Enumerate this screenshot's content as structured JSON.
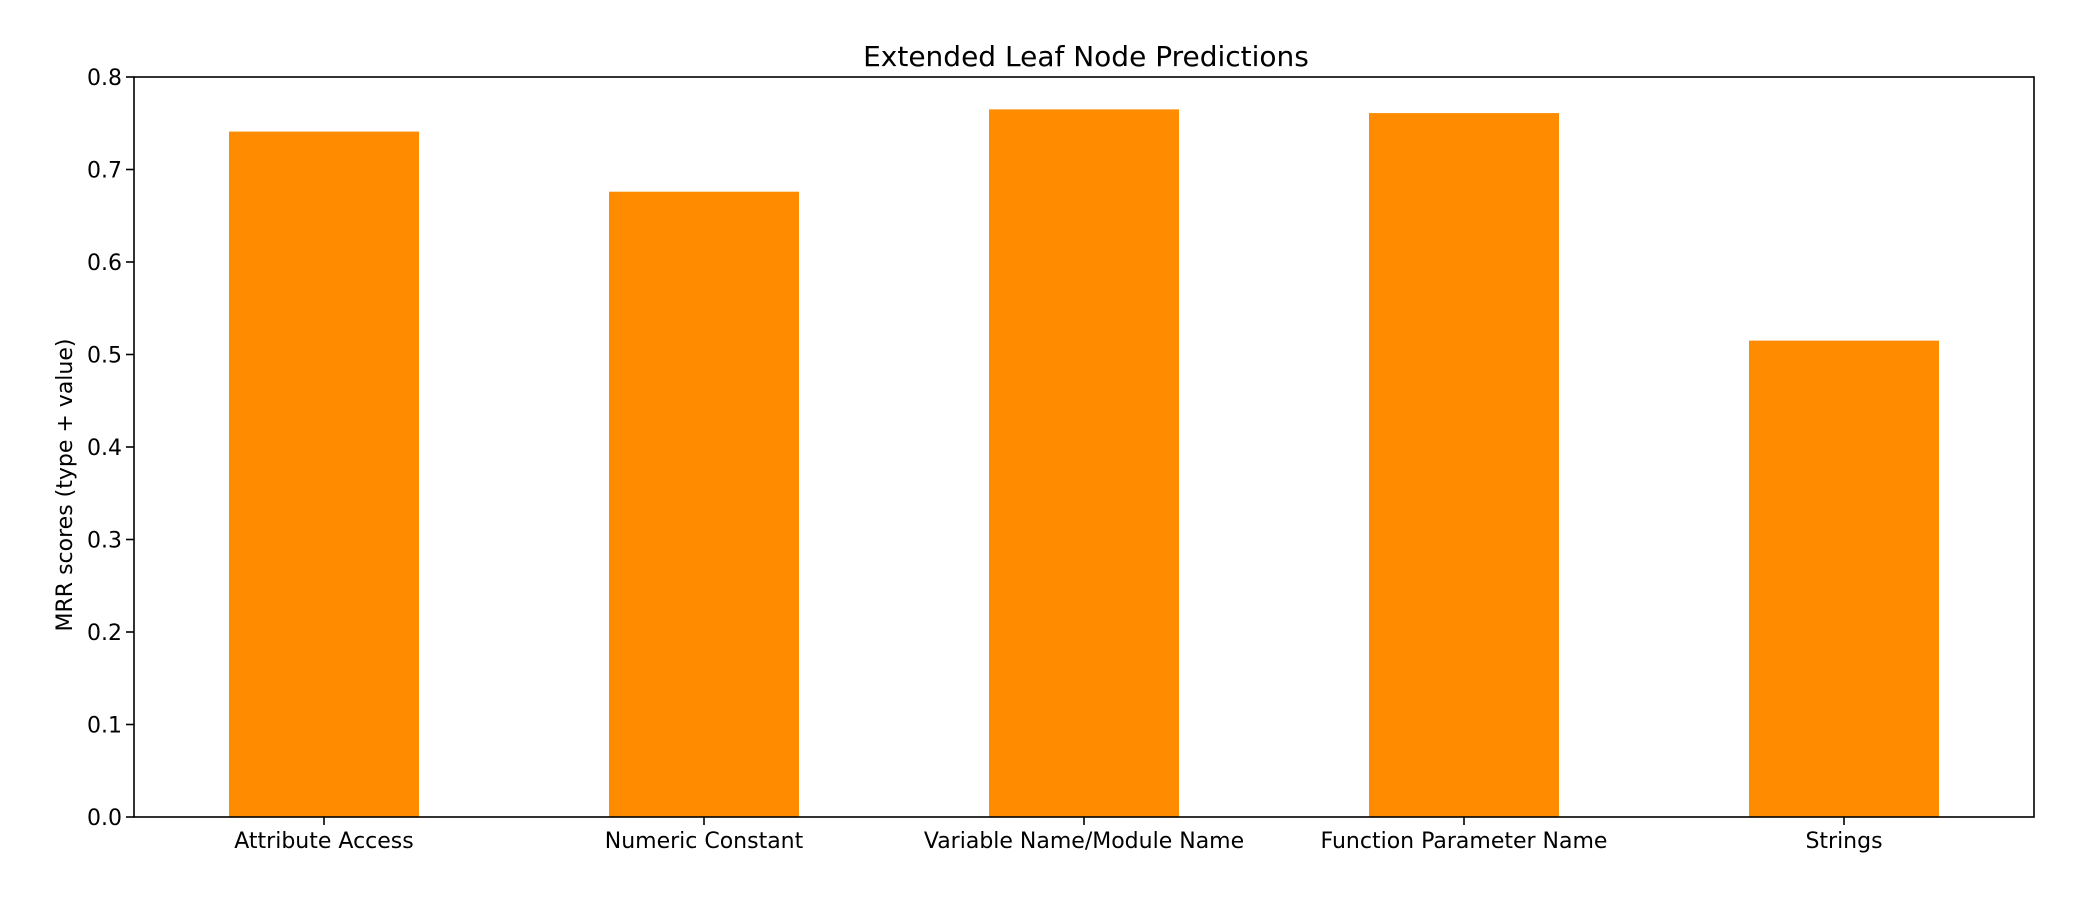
{
  "chart_data": {
    "type": "bar",
    "title": "Extended Leaf Node Predictions",
    "xlabel": "",
    "ylabel": "MRR scores (type + value)",
    "categories": [
      "Attribute Access",
      "Numeric Constant",
      "Variable Name/Module Name",
      "Function Parameter Name",
      "Strings"
    ],
    "values": [
      0.741,
      0.676,
      0.765,
      0.761,
      0.515
    ],
    "ylim": [
      0.0,
      0.8
    ],
    "yticks": [
      "0.0",
      "0.1",
      "0.2",
      "0.3",
      "0.4",
      "0.5",
      "0.6",
      "0.7",
      "0.8"
    ],
    "bar_color": "#ff8c00",
    "grid": false,
    "legend": "none"
  }
}
